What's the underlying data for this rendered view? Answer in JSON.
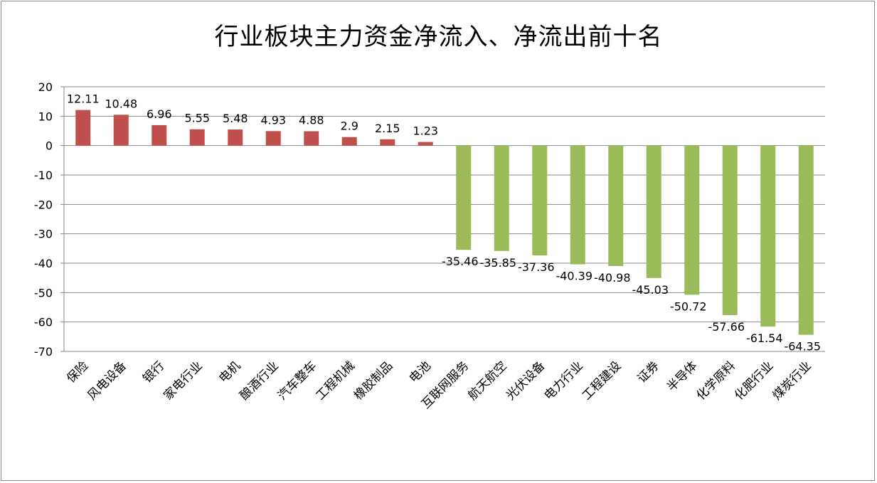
{
  "chart_data": {
    "type": "bar",
    "title": "行业板块主力资金净流入、净流出前十名",
    "xlabel": "",
    "ylabel": "",
    "ylim": [
      -70,
      20
    ],
    "yticks": [
      20,
      10,
      0,
      -10,
      -20,
      -30,
      -40,
      -50,
      -60,
      -70
    ],
    "grid": true,
    "legend": "none",
    "categories": [
      "保险",
      "风电设备",
      "银行",
      "家电行业",
      "电机",
      "酿酒行业",
      "汽车整车",
      "工程机械",
      "橡胶制品",
      "电池",
      "互联网服务",
      "航天航空",
      "光伏设备",
      "电力行业",
      "工程建设",
      "证券",
      "半导体",
      "化学原料",
      "化肥行业",
      "煤炭行业"
    ],
    "values": [
      12.11,
      10.48,
      6.96,
      5.55,
      5.48,
      4.93,
      4.88,
      2.9,
      2.15,
      1.23,
      -35.46,
      -35.85,
      -37.36,
      -40.39,
      -40.98,
      -45.03,
      -50.72,
      -57.66,
      -61.54,
      -64.35
    ],
    "data_labels": [
      "12.11",
      "10.48",
      "6.96",
      "5.55",
      "5.48",
      "4.93",
      "4.88",
      "2.9",
      "2.15",
      "1.23",
      "-35.46",
      "-35.85",
      "-37.36",
      "-40.39",
      "-40.98",
      "-45.03",
      "-50.72",
      "-57.66",
      "-61.54",
      "-64.35"
    ],
    "colors": {
      "positive": "#c0504d",
      "negative": "#9bbb59",
      "grid": "#878787",
      "axis": "#878787"
    }
  }
}
